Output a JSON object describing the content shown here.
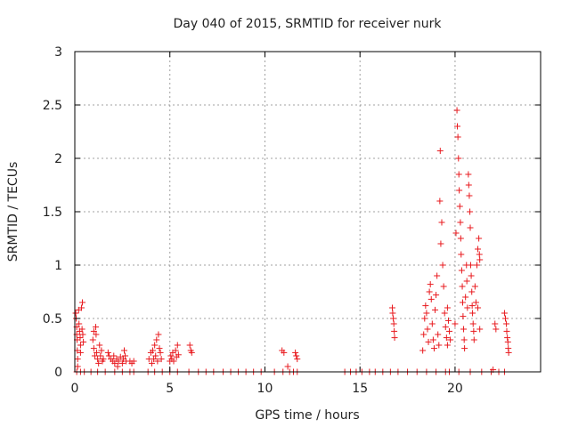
{
  "chart_data": {
    "type": "scatter",
    "title": "Day 040 of 2015, SRMTID for receiver nurk",
    "xlabel": "GPS time / hours",
    "ylabel": "SRMTID / TECUs",
    "xlim": [
      0,
      24.5
    ],
    "ylim": [
      0,
      3
    ],
    "x_ticks": [
      0,
      5,
      10,
      15,
      20
    ],
    "x_tick_labels": [
      "0",
      "5",
      "10",
      "15",
      "20"
    ],
    "y_ticks": [
      0,
      0.5,
      1,
      1.5,
      2,
      2.5,
      3
    ],
    "y_tick_labels": [
      "0",
      "0.5",
      "1",
      "1.5",
      "2",
      "2.5",
      "3"
    ],
    "grid": true,
    "marker": "+",
    "marker_color": "#e8191e",
    "series": [
      {
        "name": "SRMTID",
        "points": [
          [
            0.05,
            0.55
          ],
          [
            0.07,
            0.5
          ],
          [
            0.1,
            0.42
          ],
          [
            0.1,
            0.35
          ],
          [
            0.12,
            0.3
          ],
          [
            0.13,
            0.2
          ],
          [
            0.15,
            0.12
          ],
          [
            0.15,
            0.05
          ],
          [
            0.2,
            0.58
          ],
          [
            0.22,
            0.45
          ],
          [
            0.25,
            0.38
          ],
          [
            0.28,
            0.32
          ],
          [
            0.3,
            0.25
          ],
          [
            0.3,
            0.18
          ],
          [
            0.35,
            0.6
          ],
          [
            0.38,
            0.4
          ],
          [
            0.4,
            0.65
          ],
          [
            0.42,
            0.35
          ],
          [
            0.45,
            0.28
          ],
          [
            0.1,
            0.0
          ],
          [
            0.3,
            0.0
          ],
          [
            0.5,
            0.0
          ],
          [
            0.85,
            0.0
          ],
          [
            0.95,
            0.3
          ],
          [
            1.0,
            0.38
          ],
          [
            1.0,
            0.22
          ],
          [
            1.05,
            0.15
          ],
          [
            1.1,
            0.42
          ],
          [
            1.12,
            0.35
          ],
          [
            1.15,
            0.18
          ],
          [
            1.2,
            0.12
          ],
          [
            1.25,
            0.08
          ],
          [
            1.3,
            0.25
          ],
          [
            1.35,
            0.15
          ],
          [
            1.4,
            0.2
          ],
          [
            1.45,
            0.1
          ],
          [
            1.5,
            0.12
          ],
          [
            1.2,
            0.0
          ],
          [
            1.6,
            0.0
          ],
          [
            1.75,
            0.18
          ],
          [
            1.8,
            0.15
          ],
          [
            1.9,
            0.12
          ],
          [
            2.0,
            0.1
          ],
          [
            2.05,
            0.15
          ],
          [
            2.1,
            0.08
          ],
          [
            2.2,
            0.12
          ],
          [
            2.25,
            0.05
          ],
          [
            2.3,
            0.1
          ],
          [
            2.4,
            0.14
          ],
          [
            2.5,
            0.08
          ],
          [
            2.55,
            0.12
          ],
          [
            2.6,
            0.2
          ],
          [
            2.65,
            0.15
          ],
          [
            2.7,
            0.1
          ],
          [
            2.1,
            0.0
          ],
          [
            2.5,
            0.0
          ],
          [
            2.9,
            0.1
          ],
          [
            3.0,
            0.08
          ],
          [
            3.1,
            0.1
          ],
          [
            2.9,
            0.0
          ],
          [
            3.1,
            0.0
          ],
          [
            3.85,
            0.0
          ],
          [
            3.9,
            0.12
          ],
          [
            4.0,
            0.18
          ],
          [
            4.05,
            0.08
          ],
          [
            4.1,
            0.2
          ],
          [
            4.15,
            0.12
          ],
          [
            4.2,
            0.25
          ],
          [
            4.25,
            0.15
          ],
          [
            4.3,
            0.3
          ],
          [
            4.35,
            0.1
          ],
          [
            4.4,
            0.35
          ],
          [
            4.45,
            0.22
          ],
          [
            4.5,
            0.18
          ],
          [
            4.55,
            0.12
          ],
          [
            4.2,
            0.0
          ],
          [
            4.6,
            0.0
          ],
          [
            5.0,
            0.1
          ],
          [
            5.05,
            0.15
          ],
          [
            5.1,
            0.12
          ],
          [
            5.15,
            0.18
          ],
          [
            5.2,
            0.1
          ],
          [
            5.3,
            0.2
          ],
          [
            5.35,
            0.14
          ],
          [
            5.4,
            0.25
          ],
          [
            5.45,
            0.16
          ],
          [
            5.0,
            0.0
          ],
          [
            5.4,
            0.0
          ],
          [
            6.05,
            0.25
          ],
          [
            6.1,
            0.2
          ],
          [
            6.15,
            0.18
          ],
          [
            6.0,
            0.0
          ],
          [
            6.5,
            0.0
          ],
          [
            6.9,
            0.0
          ],
          [
            7.3,
            0.0
          ],
          [
            7.8,
            0.0
          ],
          [
            8.2,
            0.0
          ],
          [
            8.6,
            0.0
          ],
          [
            9.0,
            0.0
          ],
          [
            9.4,
            0.0
          ],
          [
            9.8,
            0.0
          ],
          [
            10.5,
            0.0
          ],
          [
            10.9,
            0.2
          ],
          [
            11.0,
            0.18
          ],
          [
            10.95,
            0.0
          ],
          [
            11.2,
            0.05
          ],
          [
            11.3,
            0.0
          ],
          [
            11.5,
            0.0
          ],
          [
            11.6,
            0.18
          ],
          [
            11.65,
            0.15
          ],
          [
            11.7,
            0.12
          ],
          [
            11.7,
            0.0
          ],
          [
            14.2,
            0.0
          ],
          [
            14.5,
            0.0
          ],
          [
            14.8,
            0.0
          ],
          [
            15.1,
            0.0
          ],
          [
            15.5,
            0.0
          ],
          [
            15.8,
            0.0
          ],
          [
            16.2,
            0.0
          ],
          [
            16.6,
            0.0
          ],
          [
            16.7,
            0.6
          ],
          [
            16.72,
            0.55
          ],
          [
            16.75,
            0.5
          ],
          [
            16.78,
            0.45
          ],
          [
            16.8,
            0.38
          ],
          [
            16.82,
            0.32
          ],
          [
            17.0,
            0.0
          ],
          [
            17.5,
            0.0
          ],
          [
            18.0,
            0.0
          ],
          [
            18.3,
            0.2
          ],
          [
            18.35,
            0.35
          ],
          [
            18.4,
            0.5
          ],
          [
            18.45,
            0.62
          ],
          [
            18.5,
            0.55
          ],
          [
            18.55,
            0.4
          ],
          [
            18.6,
            0.28
          ],
          [
            18.65,
            0.75
          ],
          [
            18.7,
            0.82
          ],
          [
            18.75,
            0.68
          ],
          [
            18.8,
            0.45
          ],
          [
            18.85,
            0.3
          ],
          [
            18.9,
            0.22
          ],
          [
            18.95,
            0.58
          ],
          [
            19.0,
            0.72
          ],
          [
            19.05,
            0.9
          ],
          [
            19.1,
            0.35
          ],
          [
            19.15,
            0.25
          ],
          [
            19.2,
            1.6
          ],
          [
            19.22,
            2.07
          ],
          [
            19.25,
            1.2
          ],
          [
            19.3,
            1.4
          ],
          [
            19.35,
            1.0
          ],
          [
            19.4,
            0.8
          ],
          [
            19.45,
            0.55
          ],
          [
            19.5,
            0.42
          ],
          [
            19.55,
            0.32
          ],
          [
            19.6,
            0.25
          ],
          [
            19.6,
            0.6
          ],
          [
            19.65,
            0.48
          ],
          [
            19.7,
            0.38
          ],
          [
            19.75,
            0.3
          ],
          [
            18.5,
            0.0
          ],
          [
            19.0,
            0.0
          ],
          [
            19.5,
            0.0
          ],
          [
            19.7,
            0.0
          ],
          [
            20.0,
            0.45
          ],
          [
            20.05,
            1.3
          ],
          [
            20.1,
            2.45
          ],
          [
            20.12,
            2.3
          ],
          [
            20.15,
            2.2
          ],
          [
            20.18,
            2.0
          ],
          [
            20.2,
            1.85
          ],
          [
            20.22,
            1.7
          ],
          [
            20.25,
            1.55
          ],
          [
            20.28,
            1.4
          ],
          [
            20.3,
            1.25
          ],
          [
            20.32,
            1.1
          ],
          [
            20.35,
            0.95
          ],
          [
            20.38,
            0.8
          ],
          [
            20.4,
            0.65
          ],
          [
            20.42,
            0.52
          ],
          [
            20.45,
            0.4
          ],
          [
            20.48,
            0.3
          ],
          [
            20.5,
            0.22
          ],
          [
            20.55,
            0.7
          ],
          [
            20.6,
            1.0
          ],
          [
            20.62,
            0.85
          ],
          [
            20.65,
            0.6
          ],
          [
            20.7,
            1.85
          ],
          [
            20.72,
            1.75
          ],
          [
            20.75,
            1.65
          ],
          [
            20.78,
            1.5
          ],
          [
            20.8,
            1.35
          ],
          [
            20.82,
            1.0
          ],
          [
            20.85,
            0.9
          ],
          [
            20.88,
            0.75
          ],
          [
            20.9,
            0.62
          ],
          [
            20.92,
            0.55
          ],
          [
            20.95,
            0.45
          ],
          [
            20.98,
            0.38
          ],
          [
            21.0,
            0.3
          ],
          [
            21.05,
            0.8
          ],
          [
            21.1,
            0.65
          ],
          [
            21.15,
            1.0
          ],
          [
            21.2,
            1.15
          ],
          [
            21.25,
            1.25
          ],
          [
            21.28,
            1.1
          ],
          [
            21.3,
            1.05
          ],
          [
            21.2,
            0.6
          ],
          [
            21.3,
            0.4
          ],
          [
            20.2,
            0.0
          ],
          [
            20.8,
            0.0
          ],
          [
            21.4,
            0.0
          ],
          [
            21.9,
            0.0
          ],
          [
            22.0,
            0.02
          ],
          [
            22.1,
            0.45
          ],
          [
            22.15,
            0.4
          ],
          [
            22.3,
            0.0
          ],
          [
            22.6,
            0.55
          ],
          [
            22.65,
            0.5
          ],
          [
            22.7,
            0.45
          ],
          [
            22.72,
            0.38
          ],
          [
            22.75,
            0.32
          ],
          [
            22.78,
            0.28
          ],
          [
            22.8,
            0.22
          ],
          [
            22.82,
            0.18
          ],
          [
            22.6,
            0.0
          ]
        ]
      }
    ]
  }
}
